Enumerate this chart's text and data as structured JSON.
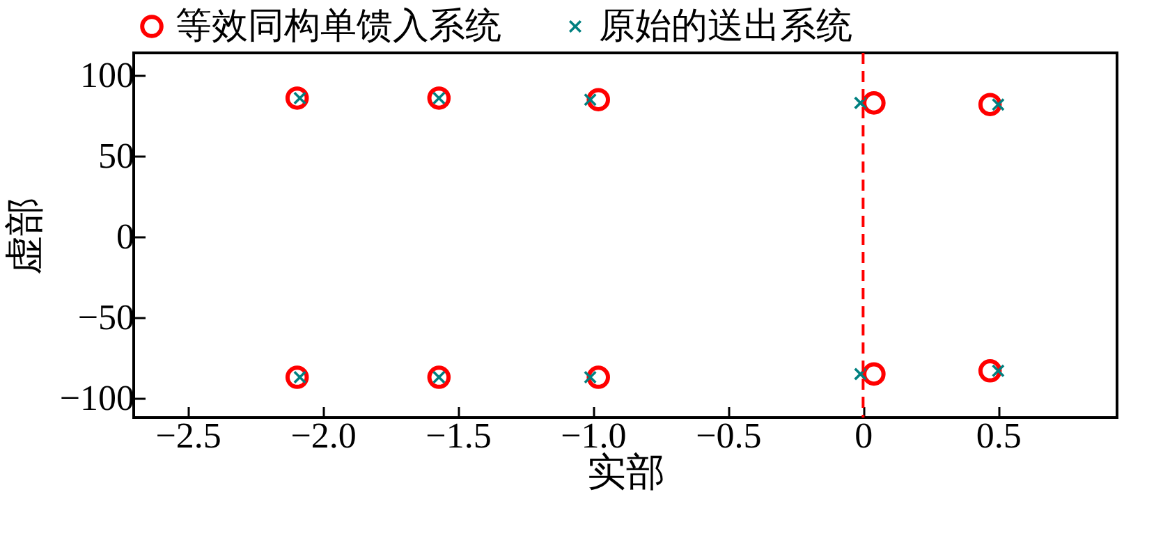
{
  "chart_data": {
    "type": "scatter",
    "xlabel": "实部",
    "ylabel": "虚部",
    "series": [
      {
        "name": "等效同构单馈入系统",
        "color": "#ff0000",
        "marker": "circle",
        "x": [
          -2.095,
          -1.57,
          -0.98,
          0.04,
          0.47,
          -2.095,
          -1.57,
          -0.98,
          0.04,
          0.47
        ],
        "values": [
          86,
          86,
          85,
          83,
          82,
          -87,
          -87,
          -87,
          -85,
          -83
        ]
      },
      {
        "name": "原始的送出系统",
        "color": "#008080",
        "marker": "cross",
        "x": [
          -2.085,
          -1.57,
          -1.01,
          -0.01,
          0.5,
          -2.085,
          -1.57,
          -1.01,
          -0.01,
          0.5
        ],
        "values": [
          86,
          86,
          85,
          83,
          82,
          -87,
          -87,
          -87,
          -85,
          -83
        ]
      }
    ],
    "xlim": [
      -2.7,
      0.94
    ],
    "xticks": [
      {
        "value": -2.5,
        "label": "−2.5"
      },
      {
        "value": -2,
        "label": "−2.0"
      },
      {
        "value": -1.5,
        "label": "−1.5"
      },
      {
        "value": -1,
        "label": "−1.0"
      },
      {
        "value": -0.5,
        "label": "−0.5"
      },
      0,
      0.5
    ],
    "ylim": [
      -112,
      114
    ],
    "yticks": [
      {
        "value": -100,
        "label": "−100"
      },
      {
        "value": -50,
        "label": "−50"
      },
      0,
      50,
      100
    ],
    "ref_lines": [
      {
        "axis": "x",
        "value": 0,
        "color": "#ff0000",
        "line_style": "dashed"
      }
    ],
    "legend": "top",
    "grid": false
  }
}
